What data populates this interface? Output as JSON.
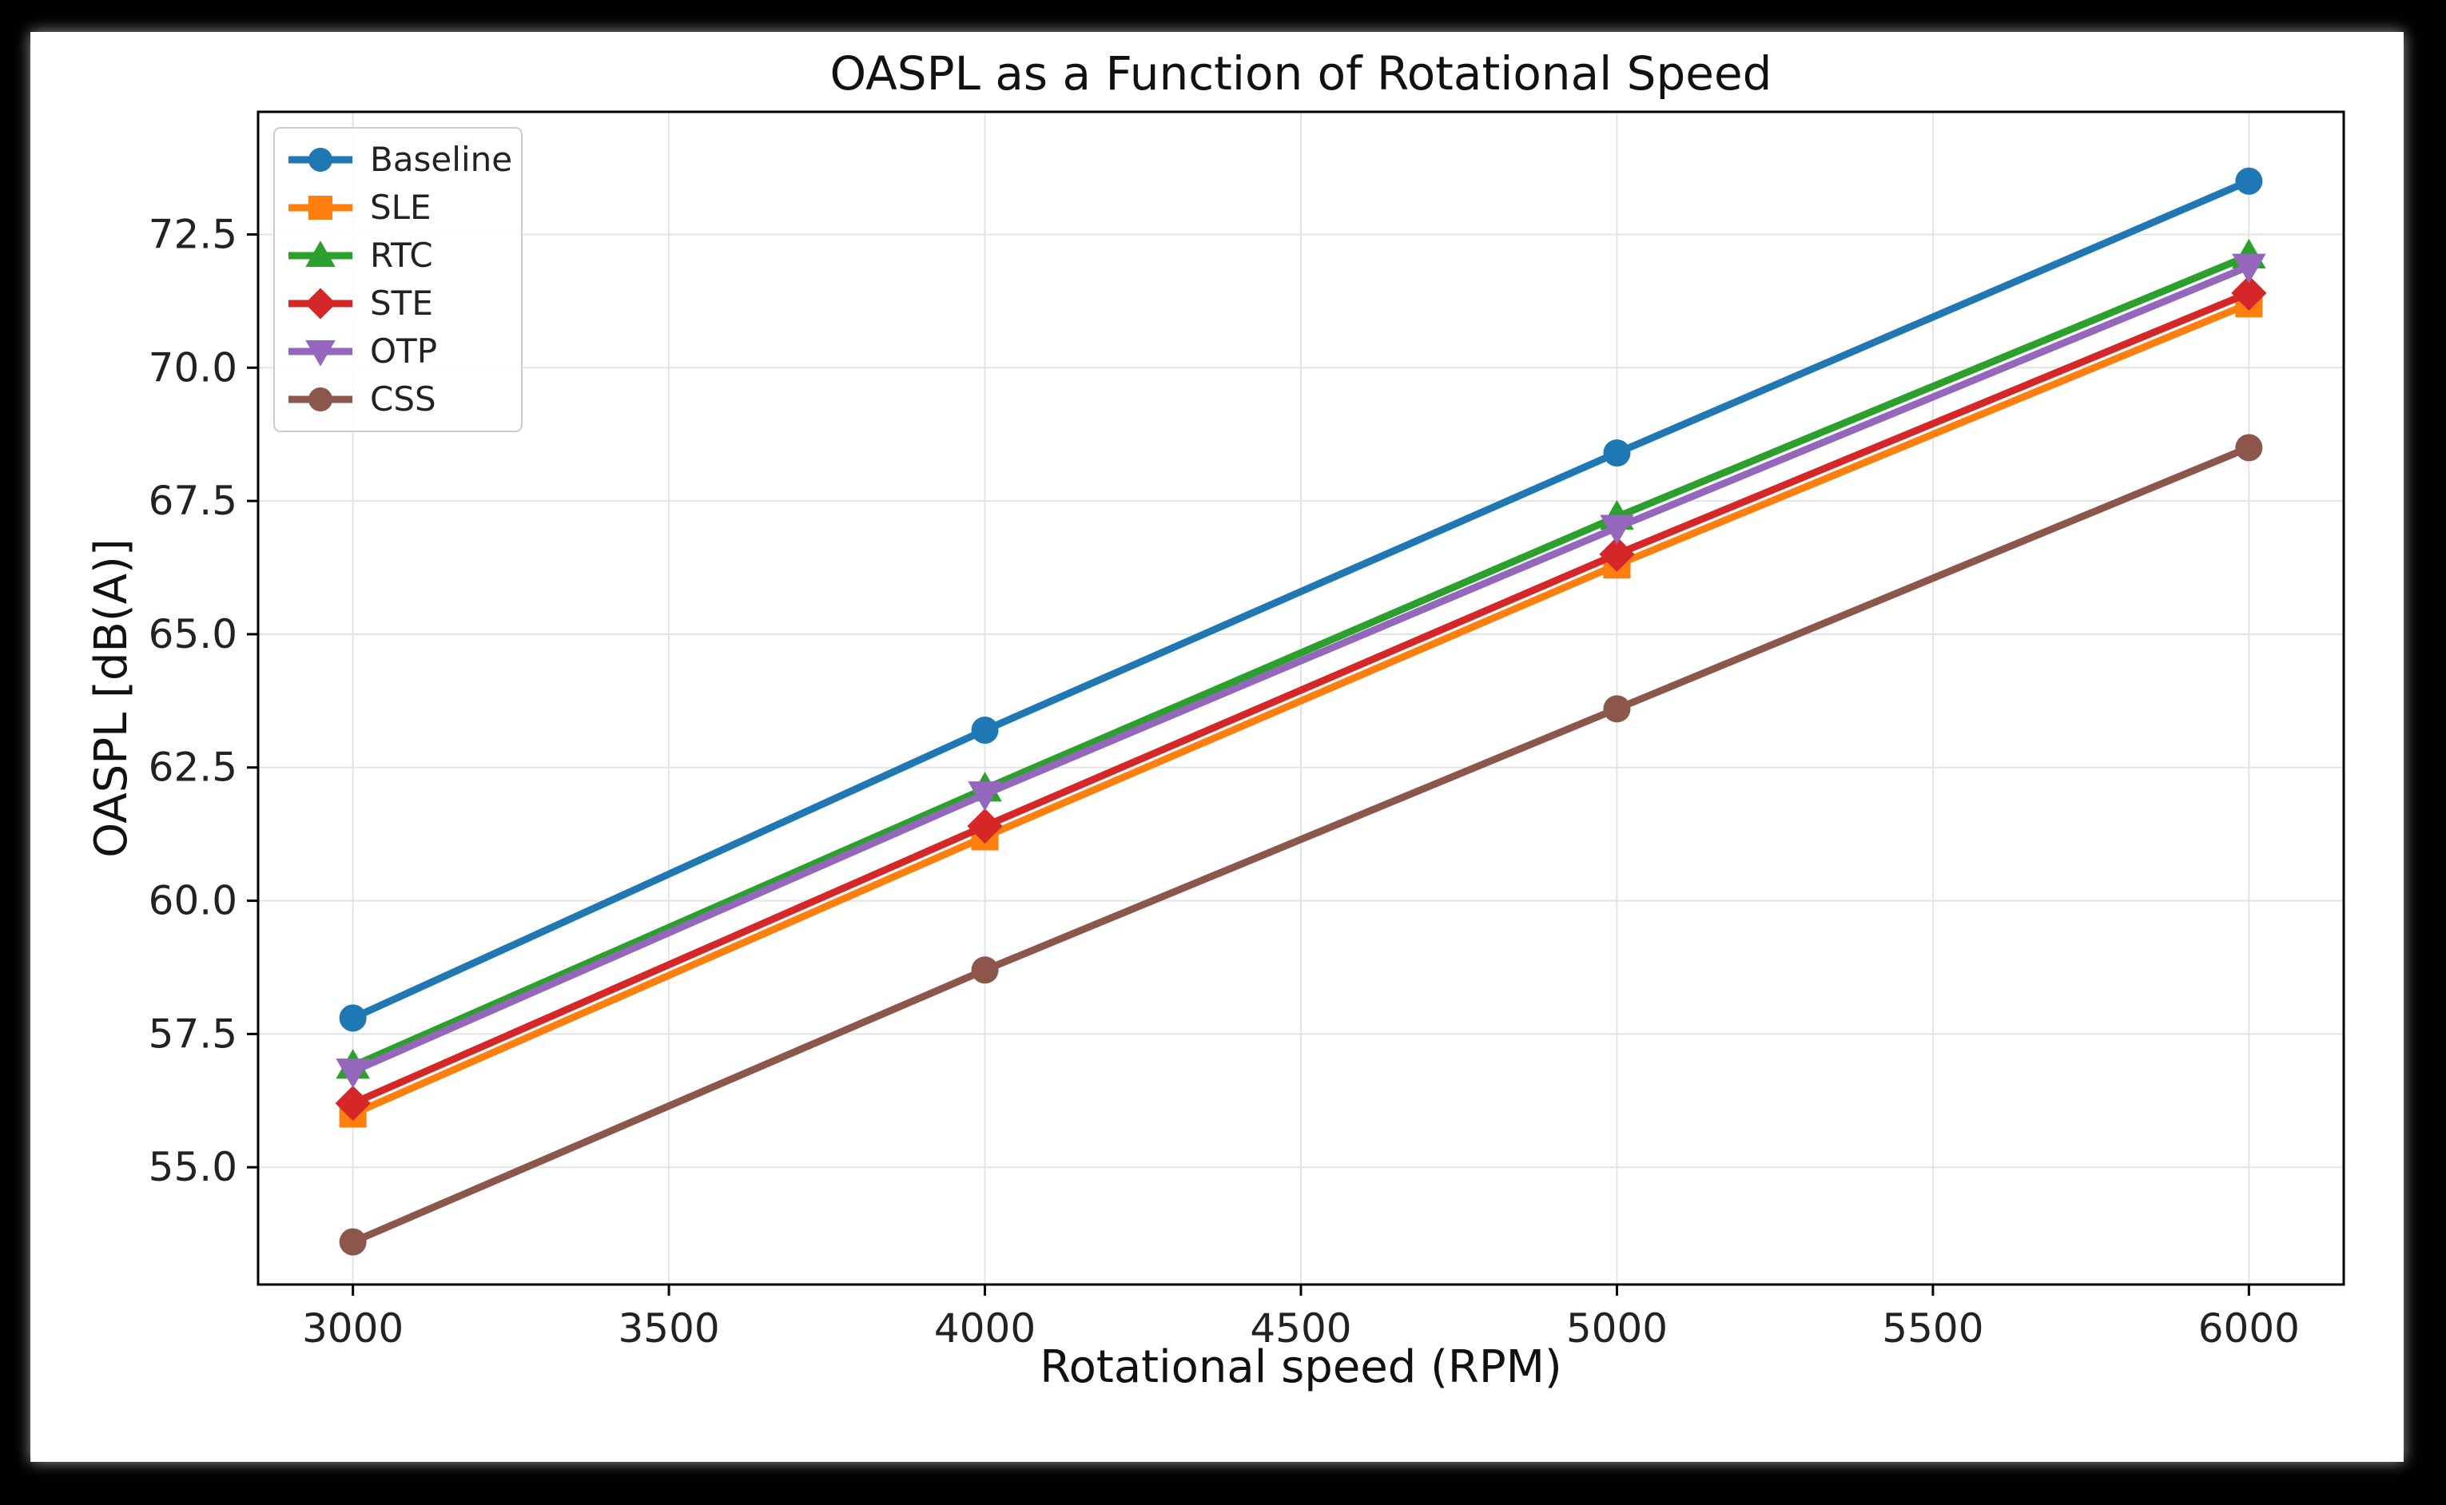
{
  "chart_data": {
    "type": "line",
    "title": "OASPL as a Function of Rotational Speed",
    "xlabel": "Rotational speed (RPM)",
    "ylabel": "OASPL [dB(A)]",
    "x": [
      3000,
      4000,
      5000,
      6000
    ],
    "xlim": [
      2850,
      6150
    ],
    "ylim": [
      52.8,
      74.8
    ],
    "xticks": [
      3000,
      3500,
      4000,
      4500,
      5000,
      5500,
      6000
    ],
    "yticks": [
      55.0,
      57.5,
      60.0,
      62.5,
      65.0,
      67.5,
      70.0,
      72.5
    ],
    "xtick_labels": [
      "3000",
      "3500",
      "4000",
      "4500",
      "5000",
      "5500",
      "6000"
    ],
    "ytick_labels": [
      "55.0",
      "57.5",
      "60.0",
      "62.5",
      "65.0",
      "67.5",
      "70.0",
      "72.5"
    ],
    "grid": true,
    "legend_position": "top-left",
    "series": [
      {
        "name": "Baseline",
        "values": [
          57.8,
          63.2,
          68.4,
          73.5
        ],
        "color": "#1f77b4",
        "marker": "circle"
      },
      {
        "name": "SLE",
        "values": [
          56.0,
          61.2,
          66.3,
          71.2
        ],
        "color": "#ff7f0e",
        "marker": "square"
      },
      {
        "name": "RTC",
        "values": [
          56.9,
          62.1,
          67.2,
          72.1
        ],
        "color": "#2ca02c",
        "marker": "triangle-up"
      },
      {
        "name": "STE",
        "values": [
          56.2,
          61.4,
          66.5,
          71.4
        ],
        "color": "#d62728",
        "marker": "diamond"
      },
      {
        "name": "OTP",
        "values": [
          56.8,
          62.0,
          67.0,
          71.9
        ],
        "color": "#9467bd",
        "marker": "triangle-down"
      },
      {
        "name": "CSS",
        "values": [
          53.6,
          58.7,
          63.6,
          68.5
        ],
        "color": "#8c564b",
        "marker": "circle"
      }
    ]
  }
}
